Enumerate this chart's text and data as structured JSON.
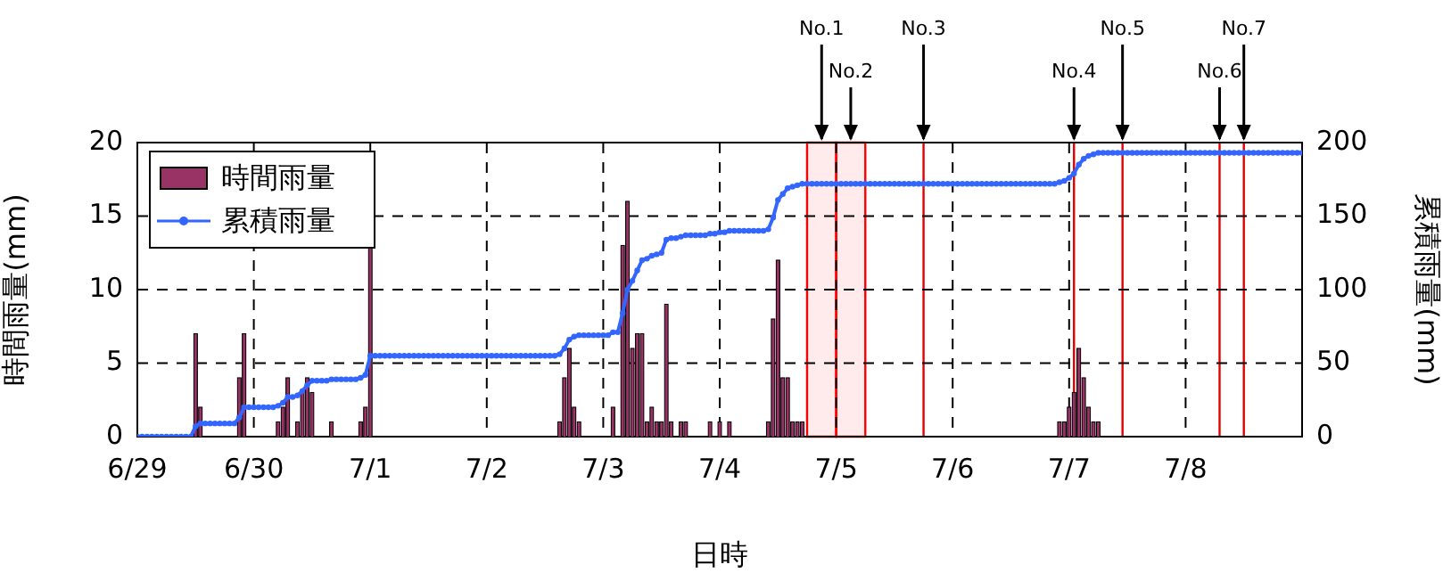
{
  "chart_data": {
    "type": "bar",
    "xlabel": "日時",
    "ylabel": "時間雨量(mm)",
    "y2label": "累積雨量(mm)",
    "xlim": [
      "--06-29",
      "--07-09"
    ],
    "xticks": [
      {
        "value": "--06-29",
        "label": "6/29"
      },
      {
        "value": "--06-30",
        "label": "6/30"
      },
      {
        "value": "--07-01",
        "label": "7/1"
      },
      {
        "value": "--07-02",
        "label": "7/2"
      },
      {
        "value": "--07-03",
        "label": "7/3"
      },
      {
        "value": "--07-04",
        "label": "7/4"
      },
      {
        "value": "--07-05",
        "label": "7/5"
      },
      {
        "value": "--07-06",
        "label": "7/6"
      },
      {
        "value": "--07-07",
        "label": "7/7"
      },
      {
        "value": "--07-08",
        "label": "7/8"
      }
    ],
    "ylim": [
      0,
      20
    ],
    "yticks": [
      0,
      5,
      10,
      15,
      20
    ],
    "y2lim": [
      0,
      200
    ],
    "y2ticks": [
      0,
      50,
      100,
      150,
      200
    ],
    "grid": true,
    "legend": "top left",
    "series": [
      {
        "name": "時間雨量",
        "color": "#993366",
        "x": [
          "--06-29T12:00",
          "--06-29T13:00",
          "--06-29T21:00",
          "--06-29T22:00",
          "--06-30T05:00",
          "--06-30T06:00",
          "--06-30T07:00",
          "--06-30T09:00",
          "--06-30T10:00",
          "--06-30T11:00",
          "--06-30T12:00",
          "--06-30T16:00",
          "--06-30T22:00",
          "--06-30T23:00",
          "--07-01T00:00",
          "--07-02T15:00",
          "--07-02T16:00",
          "--07-02T17:00",
          "--07-02T18:00",
          "--07-02T19:00",
          "--07-03T02:00",
          "--07-03T04:00",
          "--07-03T05:00",
          "--07-03T06:00",
          "--07-03T07:00",
          "--07-03T08:00",
          "--07-03T09:00",
          "--07-03T10:00",
          "--07-03T11:00",
          "--07-03T12:00",
          "--07-03T13:00",
          "--07-03T14:00",
          "--07-03T16:00",
          "--07-03T17:00",
          "--07-03T22:00",
          "--07-04T00:00",
          "--07-04T02:00",
          "--07-04T10:00",
          "--07-04T11:00",
          "--07-04T12:00",
          "--07-04T13:00",
          "--07-04T14:00",
          "--07-04T15:00",
          "--07-04T16:00",
          "--07-04T17:00",
          "--07-06T22:00",
          "--07-06T23:00",
          "--07-07T00:00",
          "--07-07T01:00",
          "--07-07T02:00",
          "--07-07T03:00",
          "--07-07T04:00",
          "--07-07T05:00",
          "--07-07T06:00"
        ],
        "values": [
          7,
          2,
          4,
          7,
          1,
          2,
          4,
          1,
          3,
          4,
          3,
          1,
          1,
          2,
          13,
          1,
          4,
          6,
          2,
          1,
          2,
          13,
          16,
          6,
          7,
          7,
          1,
          2,
          1,
          1,
          9,
          1,
          1,
          1,
          1,
          1,
          1,
          1,
          8,
          12,
          4,
          4,
          1,
          1,
          1,
          1,
          1,
          2,
          3,
          6,
          4,
          2,
          1,
          1
        ]
      },
      {
        "name": "累積雨量",
        "type": "line",
        "axis": "y2",
        "color": "#3366ff",
        "marker": "circle",
        "x": [
          "--06-29T00:00",
          "--06-29T01:00",
          "--06-29T02:00",
          "--06-29T03:00",
          "--06-29T04:00",
          "--06-29T05:00",
          "--06-29T06:00",
          "--06-29T07:00",
          "--06-29T08:00",
          "--06-29T09:00",
          "--06-29T10:00",
          "--06-29T11:00",
          "--06-29T12:00",
          "--06-29T13:00",
          "--06-29T14:00",
          "--06-29T15:00",
          "--06-29T16:00",
          "--06-29T17:00",
          "--06-29T18:00",
          "--06-29T19:00",
          "--06-29T20:00",
          "--06-29T21:00",
          "--06-29T22:00",
          "--06-29T23:00",
          "--06-30T00:00",
          "--06-30T01:00",
          "--06-30T02:00",
          "--06-30T03:00",
          "--06-30T04:00",
          "--06-30T05:00",
          "--06-30T06:00",
          "--06-30T07:00",
          "--06-30T08:00",
          "--06-30T09:00",
          "--06-30T10:00",
          "--06-30T11:00",
          "--06-30T12:00",
          "--06-30T13:00",
          "--06-30T14:00",
          "--06-30T15:00",
          "--06-30T16:00",
          "--06-30T17:00",
          "--06-30T18:00",
          "--06-30T19:00",
          "--06-30T20:00",
          "--06-30T21:00",
          "--06-30T22:00",
          "--06-30T23:00",
          "--07-01T00:00",
          "--07-01T01:00",
          "--07-01T02:00",
          "--07-01T03:00",
          "--07-01T04:00",
          "--07-01T05:00",
          "--07-01T06:00",
          "--07-01T07:00",
          "--07-01T08:00",
          "--07-01T09:00",
          "--07-01T10:00",
          "--07-01T11:00",
          "--07-01T12:00",
          "--07-01T13:00",
          "--07-01T14:00",
          "--07-01T15:00",
          "--07-01T16:00",
          "--07-01T17:00",
          "--07-01T18:00",
          "--07-01T19:00",
          "--07-01T20:00",
          "--07-01T21:00",
          "--07-01T22:00",
          "--07-01T23:00",
          "--07-02T00:00",
          "--07-02T01:00",
          "--07-02T02:00",
          "--07-02T03:00",
          "--07-02T04:00",
          "--07-02T05:00",
          "--07-02T06:00",
          "--07-02T07:00",
          "--07-02T08:00",
          "--07-02T09:00",
          "--07-02T10:00",
          "--07-02T11:00",
          "--07-02T12:00",
          "--07-02T13:00",
          "--07-02T14:00",
          "--07-02T15:00",
          "--07-02T16:00",
          "--07-02T17:00",
          "--07-02T18:00",
          "--07-02T19:00",
          "--07-02T20:00",
          "--07-02T21:00",
          "--07-02T22:00",
          "--07-02T23:00",
          "--07-03T00:00",
          "--07-03T01:00",
          "--07-03T02:00",
          "--07-03T03:00",
          "--07-03T04:00",
          "--07-03T05:00",
          "--07-03T06:00",
          "--07-03T07:00",
          "--07-03T08:00",
          "--07-03T09:00",
          "--07-03T10:00",
          "--07-03T11:00",
          "--07-03T12:00",
          "--07-03T13:00",
          "--07-03T14:00",
          "--07-03T15:00",
          "--07-03T16:00",
          "--07-03T17:00",
          "--07-03T18:00",
          "--07-03T19:00",
          "--07-03T20:00",
          "--07-03T21:00",
          "--07-03T22:00",
          "--07-03T23:00",
          "--07-04T00:00",
          "--07-04T01:00",
          "--07-04T02:00",
          "--07-04T03:00",
          "--07-04T04:00",
          "--07-04T05:00",
          "--07-04T06:00",
          "--07-04T07:00",
          "--07-04T08:00",
          "--07-04T09:00",
          "--07-04T10:00",
          "--07-04T11:00",
          "--07-04T12:00",
          "--07-04T13:00",
          "--07-04T14:00",
          "--07-04T15:00",
          "--07-04T16:00",
          "--07-04T17:00",
          "--07-04T18:00",
          "--07-04T19:00",
          "--07-04T20:00",
          "--07-04T21:00",
          "--07-04T22:00",
          "--07-04T23:00",
          "--07-05T00:00",
          "--07-05T01:00",
          "--07-05T02:00",
          "--07-05T03:00",
          "--07-05T04:00",
          "--07-05T05:00",
          "--07-05T06:00",
          "--07-05T07:00",
          "--07-05T08:00",
          "--07-05T09:00",
          "--07-05T10:00",
          "--07-05T11:00",
          "--07-05T12:00",
          "--07-05T13:00",
          "--07-05T14:00",
          "--07-05T15:00",
          "--07-05T16:00",
          "--07-05T17:00",
          "--07-05T18:00",
          "--07-05T19:00",
          "--07-05T20:00",
          "--07-05T21:00",
          "--07-05T22:00",
          "--07-05T23:00",
          "--07-06T00:00",
          "--07-06T01:00",
          "--07-06T02:00",
          "--07-06T03:00",
          "--07-06T04:00",
          "--07-06T05:00",
          "--07-06T06:00",
          "--07-06T07:00",
          "--07-06T08:00",
          "--07-06T09:00",
          "--07-06T10:00",
          "--07-06T11:00",
          "--07-06T12:00",
          "--07-06T13:00",
          "--07-06T14:00",
          "--07-06T15:00",
          "--07-06T16:00",
          "--07-06T17:00",
          "--07-06T18:00",
          "--07-06T19:00",
          "--07-06T20:00",
          "--07-06T21:00",
          "--07-06T22:00",
          "--07-06T23:00",
          "--07-07T00:00",
          "--07-07T01:00",
          "--07-07T02:00",
          "--07-07T03:00",
          "--07-07T04:00",
          "--07-07T05:00",
          "--07-07T06:00",
          "--07-07T07:00",
          "--07-07T08:00",
          "--07-07T09:00",
          "--07-07T10:00",
          "--07-07T11:00",
          "--07-07T12:00",
          "--07-07T13:00",
          "--07-07T14:00",
          "--07-07T15:00",
          "--07-07T16:00",
          "--07-07T17:00",
          "--07-07T18:00",
          "--07-07T19:00",
          "--07-07T20:00",
          "--07-07T21:00",
          "--07-07T22:00",
          "--07-07T23:00",
          "--07-08T00:00",
          "--07-08T01:00",
          "--07-08T02:00",
          "--07-08T03:00",
          "--07-08T04:00",
          "--07-08T05:00",
          "--07-08T06:00",
          "--07-08T07:00",
          "--07-08T08:00",
          "--07-08T09:00",
          "--07-08T10:00",
          "--07-08T11:00",
          "--07-08T12:00",
          "--07-08T13:00",
          "--07-08T14:00",
          "--07-08T15:00",
          "--07-08T16:00",
          "--07-08T17:00",
          "--07-08T18:00",
          "--07-08T19:00",
          "--07-08T20:00",
          "--07-08T21:00",
          "--07-08T22:00",
          "--07-08T23:00",
          "--07-09T00:00"
        ],
        "values": [
          0,
          0,
          0,
          0,
          0,
          0,
          0,
          0,
          0,
          0,
          0,
          0,
          7,
          9,
          9,
          9,
          9,
          9,
          9,
          9,
          9,
          13,
          20,
          20,
          20,
          20,
          20,
          20,
          20,
          21,
          23,
          27,
          27,
          28,
          31,
          35,
          38,
          38,
          38,
          38,
          39,
          39,
          39,
          39,
          39,
          39,
          40,
          42,
          55,
          55,
          55,
          55,
          55,
          55,
          55,
          55,
          55,
          55,
          55,
          55,
          55,
          55,
          55,
          55,
          55,
          55,
          55,
          55,
          55,
          55,
          55,
          55,
          55,
          55,
          55,
          55,
          55,
          55,
          55,
          55,
          55,
          55,
          55,
          55,
          55,
          55,
          55,
          56,
          60,
          66,
          68,
          69,
          69,
          69,
          69,
          69,
          69,
          69,
          71,
          71,
          84,
          100,
          106,
          113,
          120,
          121,
          123,
          124,
          125,
          134,
          135,
          135,
          136,
          137,
          137,
          137,
          137,
          137,
          138,
          138,
          139,
          139,
          140,
          140,
          140,
          140,
          140,
          140,
          140,
          140,
          141,
          149,
          161,
          165,
          169,
          170,
          171,
          172,
          172,
          172,
          172,
          172,
          172,
          172,
          172,
          172,
          172,
          172,
          172,
          172,
          172,
          172,
          172,
          172,
          172,
          172,
          172,
          172,
          172,
          172,
          172,
          172,
          172,
          172,
          172,
          172,
          172,
          172,
          172,
          172,
          172,
          172,
          172,
          172,
          172,
          172,
          172,
          172,
          172,
          172,
          172,
          172,
          172,
          172,
          172,
          172,
          172,
          172,
          172,
          172,
          173,
          174,
          176,
          179,
          185,
          189,
          191,
          192,
          193,
          193,
          193,
          193,
          193,
          193,
          193,
          193,
          193,
          193,
          193,
          193,
          193,
          193,
          193,
          193,
          193,
          193,
          193,
          193,
          193,
          193,
          193,
          193,
          193,
          193,
          193,
          193,
          193,
          193,
          193,
          193,
          193,
          193,
          193,
          193,
          193,
          193,
          193,
          193,
          193,
          193,
          193
        ]
      }
    ],
    "bands": [
      {
        "axis": "x",
        "from": "--07-04T18:00",
        "to": "--07-05T00:00",
        "label": "No.1",
        "color": "#ff0000"
      },
      {
        "axis": "x",
        "from": "--07-05T00:00",
        "to": "--07-05T06:00",
        "label": "No.2",
        "color": "#ff0000"
      }
    ],
    "ref_lines": [
      {
        "axis": "x",
        "value": "--07-05T18:00",
        "label": "No.3",
        "color": "#e00000"
      },
      {
        "axis": "x",
        "value": "--07-07T01:00",
        "label": "No.4",
        "color": "#e00000"
      },
      {
        "axis": "x",
        "value": "--07-07T11:00",
        "label": "No.5",
        "color": "#e00000"
      },
      {
        "axis": "x",
        "value": "--07-08T07:00",
        "label": "No.6",
        "color": "#e00000"
      },
      {
        "axis": "x",
        "value": "--07-08T12:00",
        "label": "No.7",
        "color": "#e00000"
      }
    ]
  }
}
